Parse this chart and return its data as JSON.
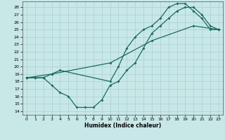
{
  "xlabel": "Humidex (Indice chaleur)",
  "xlim": [
    -0.5,
    23.5
  ],
  "ylim": [
    13.5,
    28.8
  ],
  "yticks": [
    14,
    15,
    16,
    17,
    18,
    19,
    20,
    21,
    22,
    23,
    24,
    25,
    26,
    27,
    28
  ],
  "xticks": [
    0,
    1,
    2,
    3,
    4,
    5,
    6,
    7,
    8,
    9,
    10,
    11,
    12,
    13,
    14,
    15,
    16,
    17,
    18,
    19,
    20,
    21,
    22,
    23
  ],
  "line_color": "#1a6b5a",
  "bg_color": "#c8e8e8",
  "grid_color": "#aacece",
  "line1_x": [
    0,
    1,
    2,
    3,
    4,
    10,
    11,
    12,
    13,
    14,
    15,
    16,
    17,
    18,
    19,
    20,
    21,
    22,
    23
  ],
  "line1_y": [
    18.5,
    18.5,
    18.5,
    19.0,
    19.5,
    18.0,
    20.0,
    22.5,
    24.0,
    25.0,
    25.5,
    26.5,
    28.0,
    28.5,
    28.5,
    27.5,
    26.5,
    25.0,
    25.0
  ],
  "line2_x": [
    0,
    1,
    2,
    3,
    4,
    5,
    6,
    7,
    8,
    9,
    10,
    11,
    12,
    13,
    14,
    15,
    16,
    17,
    18,
    19,
    20,
    21,
    22,
    23
  ],
  "line2_y": [
    18.5,
    18.5,
    18.5,
    17.5,
    16.5,
    16.0,
    14.5,
    14.5,
    14.5,
    15.5,
    17.5,
    18.0,
    19.5,
    20.5,
    22.5,
    24.5,
    25.5,
    26.5,
    27.5,
    28.0,
    28.0,
    27.0,
    25.5,
    25.0
  ],
  "line3_x": [
    0,
    3,
    10,
    15,
    20,
    23
  ],
  "line3_y": [
    18.5,
    19.0,
    20.5,
    23.5,
    25.5,
    25.0
  ]
}
